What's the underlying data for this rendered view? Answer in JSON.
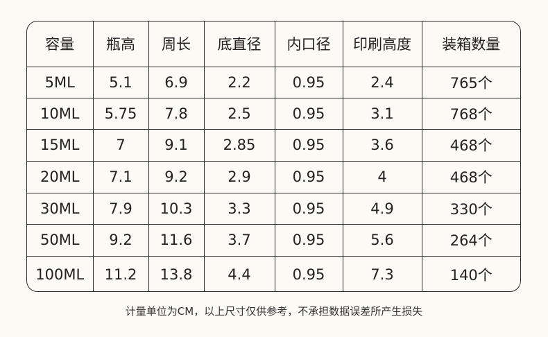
{
  "table": {
    "header": [
      "容量",
      "瓶高",
      "周长",
      "底直径",
      "内口径",
      "印刷高度",
      "装箱数量"
    ],
    "rows": [
      [
        "5ML",
        "5.1",
        "6.9",
        "2.2",
        "0.95",
        "2.4",
        "765个"
      ],
      [
        "10ML",
        "5.75",
        "7.8",
        "2.5",
        "0.95",
        "3.1",
        "768个"
      ],
      [
        "15ML",
        "7",
        "9.1",
        "2.85",
        "0.95",
        "3.6",
        "468个"
      ],
      [
        "20ML",
        "7.1",
        "9.2",
        "2.9",
        "0.95",
        "4",
        "468个"
      ],
      [
        "30ML",
        "7.9",
        "10.3",
        "3.3",
        "0.95",
        "4.9",
        "330个"
      ],
      [
        "50ML",
        "9.2",
        "11.6",
        "3.7",
        "0.95",
        "5.6",
        "264个"
      ],
      [
        "100ML",
        "11.2",
        "13.8",
        "4.4",
        "0.95",
        "7.3",
        "140个"
      ]
    ]
  },
  "footer": "计量单位为CM，以上尺寸仅供参考，不承担数据误差所产生损失"
}
